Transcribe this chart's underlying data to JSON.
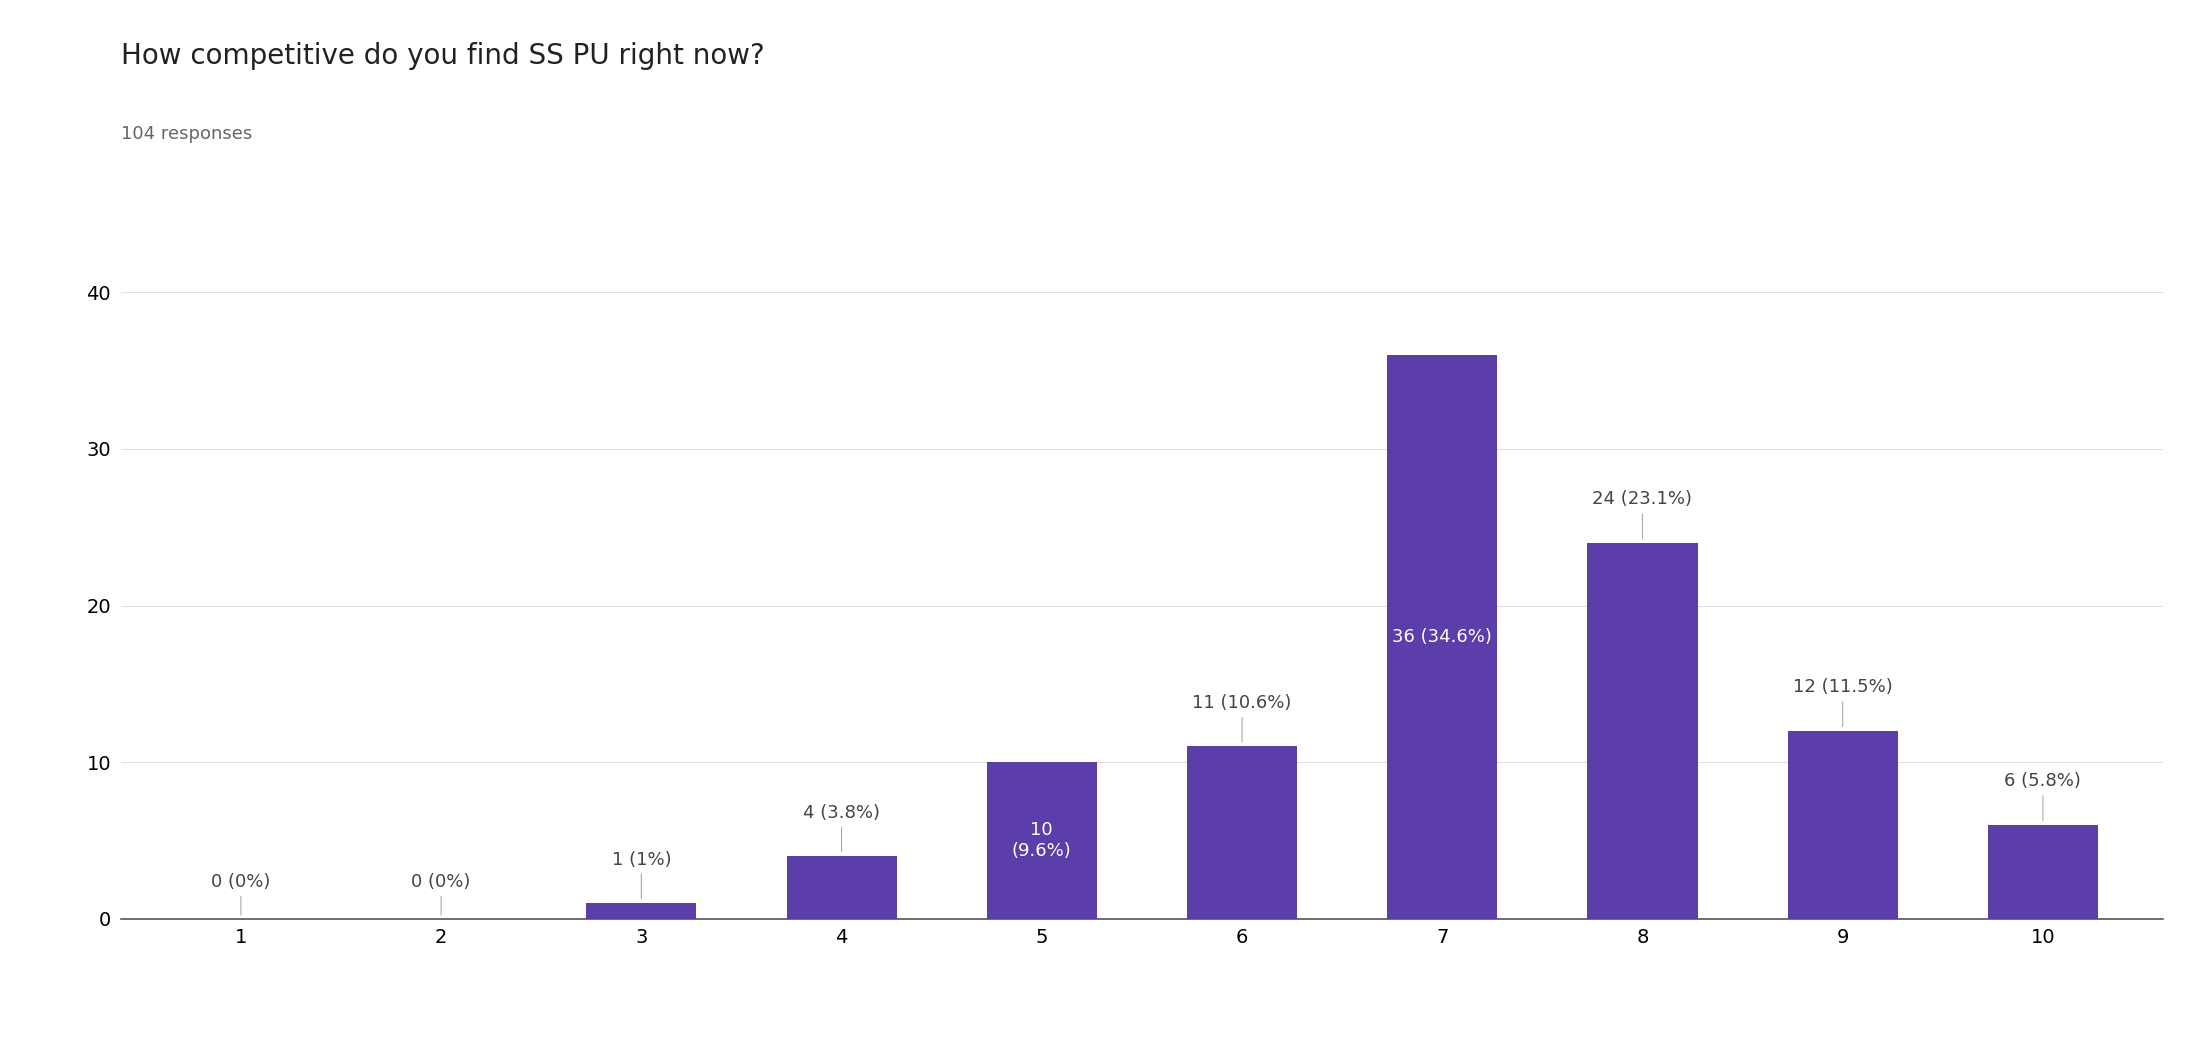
{
  "title": "How competitive do you find SS PU right now?",
  "subtitle": "104 responses",
  "categories": [
    1,
    2,
    3,
    4,
    5,
    6,
    7,
    8,
    9,
    10
  ],
  "values": [
    0,
    0,
    1,
    4,
    10,
    11,
    36,
    24,
    12,
    6
  ],
  "labels": [
    "0 (0%)",
    "0 (0%)",
    "1 (1%)",
    "4 (3.8%)",
    "10\n(9.6%)",
    "11 (10.6%)",
    "36 (34.6%)",
    "24 (23.1%)",
    "12 (11.5%)",
    "6 (5.8%)"
  ],
  "bar_color": "#5b3ea9",
  "label_color_inside": "#ffffff",
  "label_color_outside": "#444444",
  "inside_label_indices": [
    4,
    6
  ],
  "background_color": "#ffffff",
  "ylim": [
    0,
    40
  ],
  "yticks": [
    0,
    10,
    20,
    30,
    40
  ],
  "title_fontsize": 20,
  "subtitle_fontsize": 13,
  "tick_fontsize": 14,
  "label_fontsize": 13,
  "grid_color": "#e0e0e0",
  "bar_width": 0.55
}
